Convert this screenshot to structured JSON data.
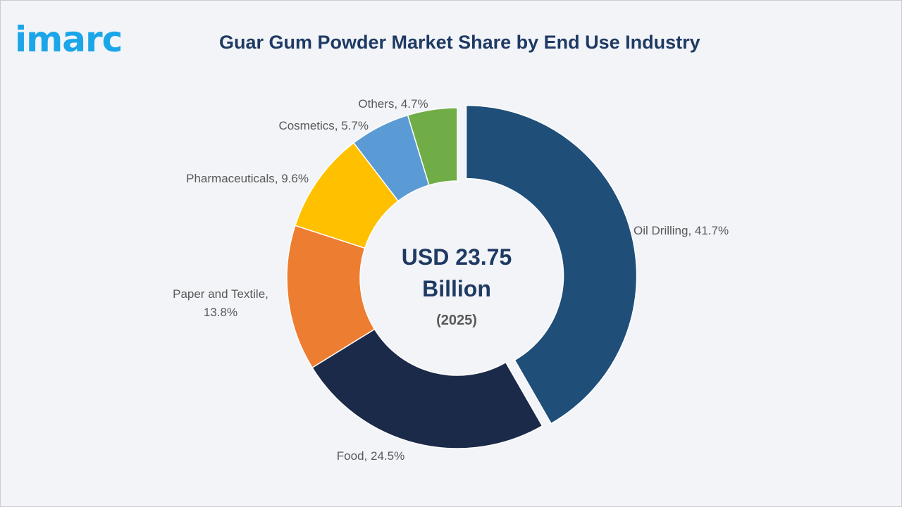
{
  "brand": {
    "logo_text": "imarc",
    "logo_color": "#1aa6e8"
  },
  "chart_data": {
    "type": "pie",
    "title": "Guar Gum Powder Market Share by End Use Industry",
    "center": {
      "line1": "USD 23.75",
      "line2": "Billion",
      "line3": "(2025)"
    },
    "unit": "%",
    "slices": [
      {
        "label": "Oil Drilling",
        "value": 41.7,
        "color": "#1f4e79",
        "label_text": "Oil Drilling, 41.7%"
      },
      {
        "label": "Food",
        "value": 24.5,
        "color": "#1c2a4a",
        "label_text": "Food, 24.5%"
      },
      {
        "label": "Paper and Textile",
        "value": 13.8,
        "color": "#ed7d31",
        "label_text": "Paper and Textile,",
        "label_text_2": "13.8%"
      },
      {
        "label": "Pharmaceuticals",
        "value": 9.6,
        "color": "#ffc000",
        "label_text": "Pharmaceuticals, 9.6%"
      },
      {
        "label": "Cosmetics",
        "value": 5.7,
        "color": "#5b9bd5",
        "label_text": "Cosmetics, 5.7%"
      },
      {
        "label": "Others",
        "value": 4.7,
        "color": "#70ad47",
        "label_text": "Others, 4.7%"
      }
    ]
  }
}
